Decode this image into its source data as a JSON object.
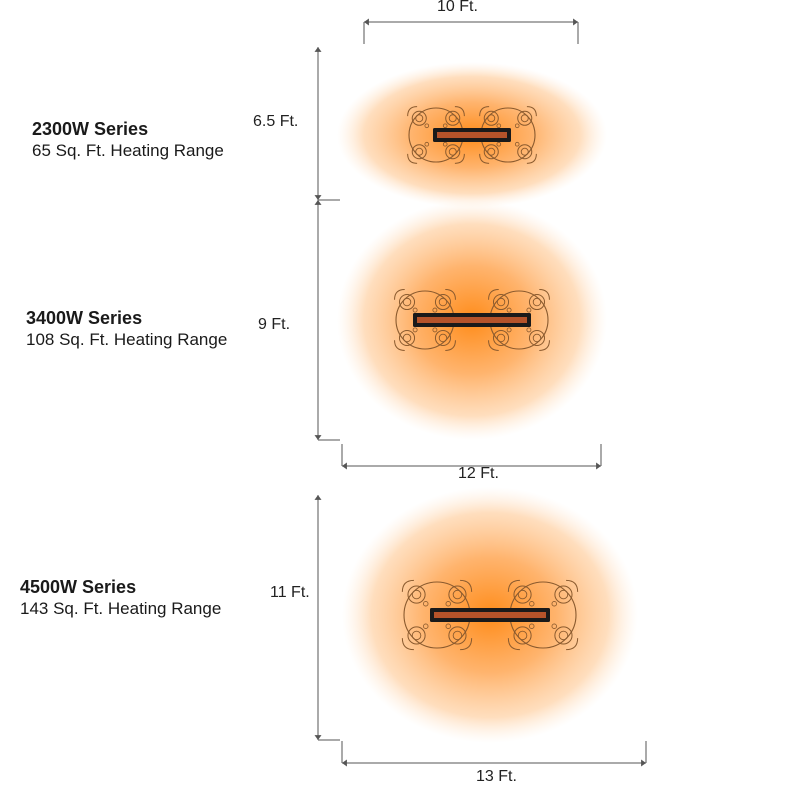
{
  "series": [
    {
      "name": "2300W Series",
      "range": "65 Sq. Ft. Heating Range",
      "width_label": "10 Ft.",
      "height_label": "6.5 Ft.",
      "width_ft": 10,
      "height_ft": 6.5,
      "area_sqft": 65
    },
    {
      "name": "3400W Series",
      "range": "108 Sq. Ft. Heating Range",
      "width_label": "12 Ft.",
      "height_label": "9 Ft.",
      "width_ft": 12,
      "height_ft": 9,
      "area_sqft": 108
    },
    {
      "name": "4500W Series",
      "range": "143 Sq. Ft. Heating Range",
      "width_label": "13 Ft.",
      "height_label": "11 Ft.",
      "width_ft": 13,
      "height_ft": 11,
      "area_sqft": 143
    }
  ],
  "colors": {
    "heat_core": "#ff8c1a",
    "heat_mid": "#ffb066",
    "heat_edge": "#ffe8d2",
    "heater_element": "#b5532a",
    "heater_frame": "#1a1a1a",
    "furniture_outline": "#8a5a2e"
  },
  "icons": {
    "table": "round-table-with-chairs-icon",
    "heater": "infrared-heater-icon",
    "heat": "heat-zone-glow"
  }
}
